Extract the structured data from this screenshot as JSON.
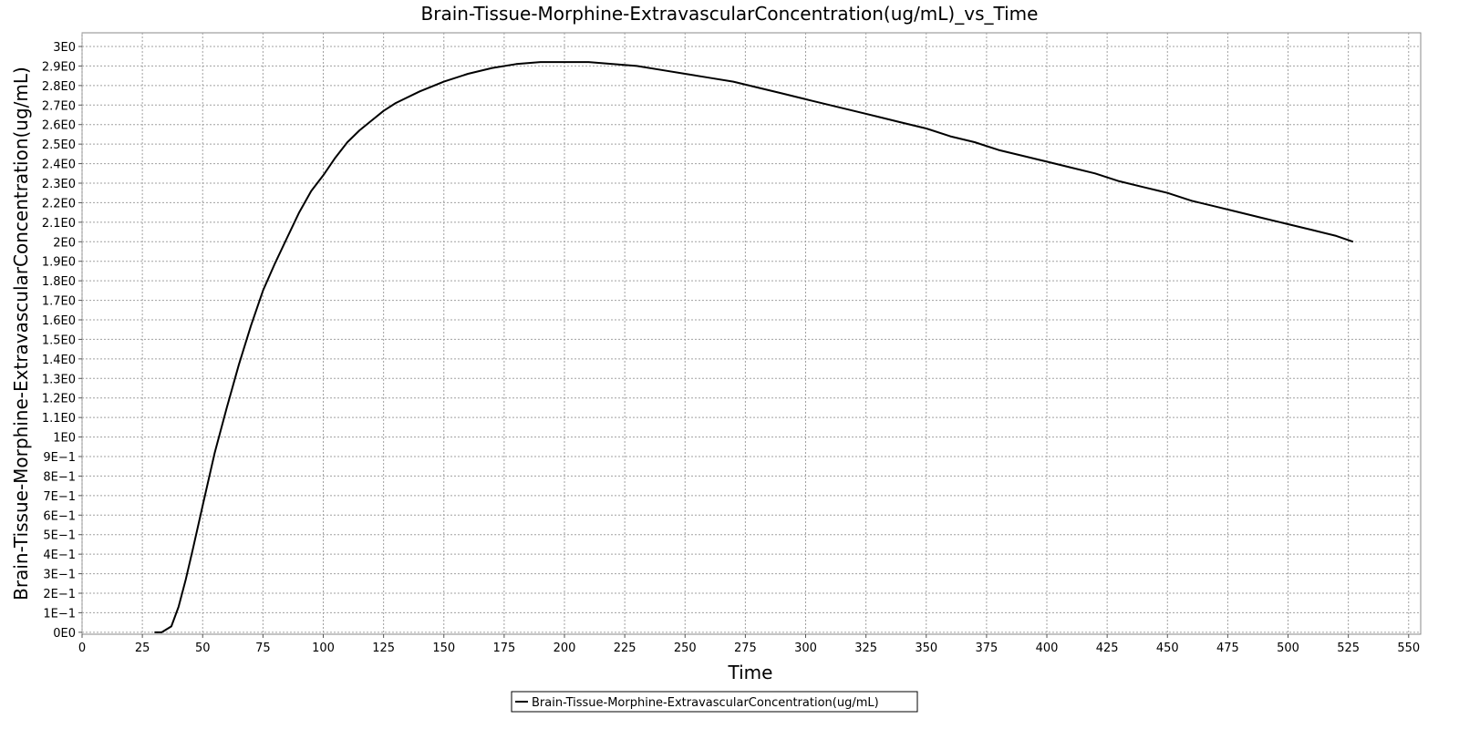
{
  "chart_data": {
    "type": "line",
    "title": "Brain-Tissue-Morphine-ExtravascularConcentration(ug/mL)_vs_Time",
    "xlabel": "Time",
    "ylabel": "Brain-Tissue-Morphine-ExtravascularConcentration(ug/mL)",
    "xlim": [
      0,
      555
    ],
    "ylim": [
      -0.01,
      3.07
    ],
    "grid": true,
    "legend_position": "bottom-center",
    "x_ticks": [
      0,
      25,
      50,
      75,
      100,
      125,
      150,
      175,
      200,
      225,
      250,
      275,
      300,
      325,
      350,
      375,
      400,
      425,
      450,
      475,
      500,
      525,
      550
    ],
    "x_tick_labels": [
      "0",
      "25",
      "50",
      "75",
      "100",
      "125",
      "150",
      "175",
      "200",
      "225",
      "250",
      "275",
      "300",
      "325",
      "350",
      "375",
      "400",
      "425",
      "450",
      "475",
      "500",
      "525",
      "550"
    ],
    "y_ticks": [
      0,
      0.1,
      0.2,
      0.3,
      0.4,
      0.5,
      0.6,
      0.7,
      0.8,
      0.9,
      1.0,
      1.1,
      1.2,
      1.3,
      1.4,
      1.5,
      1.6,
      1.7,
      1.8,
      1.9,
      2.0,
      2.1,
      2.2,
      2.3,
      2.4,
      2.5,
      2.6,
      2.7,
      2.8,
      2.9,
      3.0
    ],
    "y_tick_labels": [
      "0E0",
      "1E−1",
      "2E−1",
      "3E−1",
      "4E−1",
      "5E−1",
      "6E−1",
      "7E−1",
      "8E−1",
      "9E−1",
      "1E0",
      "1.1E0",
      "1.2E0",
      "1.3E0",
      "1.4E0",
      "1.5E0",
      "1.6E0",
      "1.7E0",
      "1.8E0",
      "1.9E0",
      "2E0",
      "2.1E0",
      "2.2E0",
      "2.3E0",
      "2.4E0",
      "2.5E0",
      "2.6E0",
      "2.7E0",
      "2.8E0",
      "2.9E0",
      "3E0"
    ],
    "series": [
      {
        "name": "Brain-Tissue-Morphine-ExtravascularConcentration(ug/mL)",
        "color": "#000000",
        "x": [
          30,
          33,
          37,
          40,
          43,
          46,
          50,
          55,
          60,
          65,
          70,
          75,
          80,
          85,
          90,
          95,
          100,
          105,
          110,
          115,
          120,
          125,
          130,
          140,
          150,
          160,
          170,
          180,
          190,
          200,
          210,
          220,
          230,
          240,
          250,
          260,
          270,
          280,
          290,
          300,
          310,
          320,
          330,
          340,
          350,
          360,
          370,
          380,
          390,
          400,
          410,
          420,
          430,
          440,
          450,
          460,
          470,
          480,
          490,
          500,
          510,
          520,
          527
        ],
        "y": [
          0.0,
          0.0,
          0.03,
          0.13,
          0.27,
          0.43,
          0.65,
          0.92,
          1.15,
          1.37,
          1.57,
          1.75,
          1.89,
          2.02,
          2.15,
          2.26,
          2.34,
          2.43,
          2.51,
          2.57,
          2.62,
          2.67,
          2.71,
          2.77,
          2.82,
          2.86,
          2.89,
          2.91,
          2.92,
          2.92,
          2.92,
          2.91,
          2.9,
          2.88,
          2.86,
          2.84,
          2.82,
          2.79,
          2.76,
          2.73,
          2.7,
          2.67,
          2.64,
          2.61,
          2.58,
          2.54,
          2.51,
          2.47,
          2.44,
          2.41,
          2.38,
          2.35,
          2.31,
          2.28,
          2.25,
          2.21,
          2.18,
          2.15,
          2.12,
          2.09,
          2.06,
          2.03,
          2.0
        ]
      }
    ]
  }
}
